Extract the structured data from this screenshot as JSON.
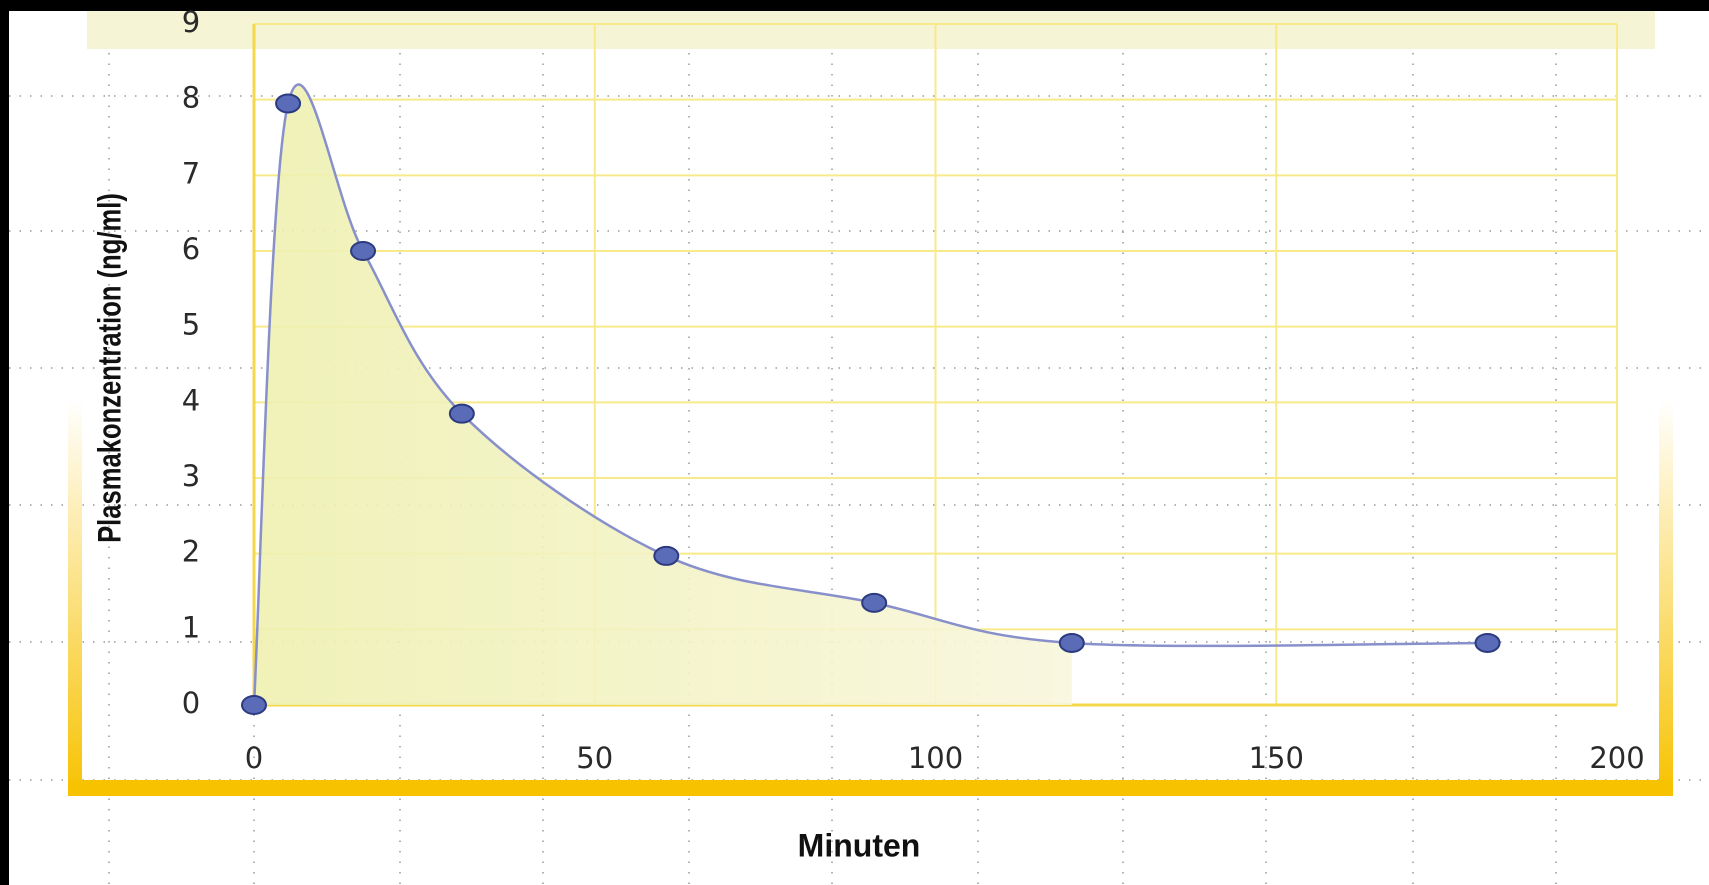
{
  "chart_data": {
    "type": "line",
    "x": [
      0,
      5,
      16,
      30.5,
      60.5,
      91,
      120,
      181
    ],
    "values": [
      0,
      7.95,
      6,
      3.85,
      1.97,
      1.35,
      0.82,
      0.82
    ],
    "color": "#8890cc",
    "xlabel": "Minuten",
    "ylabel": "Plasmakonzentration (ng/ml)",
    "xlim": [
      0,
      200
    ],
    "ylim": [
      0,
      9
    ],
    "xticks": [
      0,
      50,
      100,
      150,
      200
    ],
    "yticks": [
      0,
      1,
      2,
      3,
      4,
      5,
      6,
      7,
      8,
      9
    ],
    "grid": true
  }
}
